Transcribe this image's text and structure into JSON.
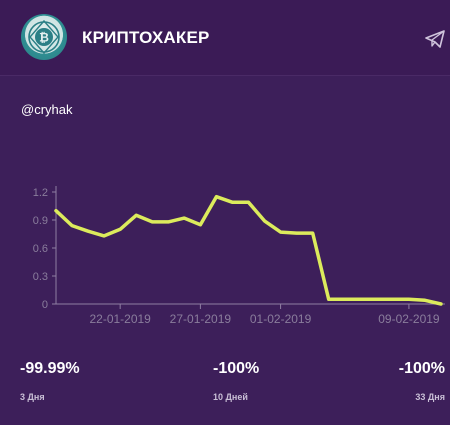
{
  "header": {
    "title": "КРИПТОХАКЕР",
    "avatar_icon": "bitcoin-emblem-icon",
    "share_icon": "telegram-send-icon"
  },
  "handle": "@cryhak",
  "chart_data": {
    "type": "line",
    "x": [
      "18-01-2019",
      "19-01-2019",
      "20-01-2019",
      "21-01-2019",
      "22-01-2019",
      "23-01-2019",
      "24-01-2019",
      "25-01-2019",
      "26-01-2019",
      "27-01-2019",
      "28-01-2019",
      "29-01-2019",
      "30-01-2019",
      "31-01-2019",
      "01-02-2019",
      "02-02-2019",
      "03-02-2019",
      "04-02-2019",
      "05-02-2019",
      "06-02-2019",
      "07-02-2019",
      "08-02-2019",
      "09-02-2019",
      "10-02-2019",
      "11-02-2019"
    ],
    "values": [
      1.0,
      0.84,
      0.78,
      0.73,
      0.8,
      0.95,
      0.88,
      0.88,
      0.92,
      0.85,
      1.15,
      1.09,
      1.09,
      0.89,
      0.77,
      0.76,
      0.76,
      0.05,
      0.05,
      0.05,
      0.05,
      0.05,
      0.05,
      0.04,
      0.0
    ],
    "xtick_labels": [
      "22-01-2019",
      "27-01-2019",
      "01-02-2019",
      "09-02-2019"
    ],
    "ytick_labels": [
      "0",
      "0.3",
      "0.6",
      "0.9",
      "1.2"
    ],
    "ylim": [
      0,
      1.2
    ],
    "title": "",
    "xlabel": "",
    "ylabel": "",
    "line_color": "#dceb5c",
    "grid": false
  },
  "stats": [
    {
      "value": "-99.99%",
      "period": "3 Дня"
    },
    {
      "value": "-100%",
      "period": "10 Дней"
    },
    {
      "value": "-100%",
      "period": "33 Дня"
    }
  ]
}
